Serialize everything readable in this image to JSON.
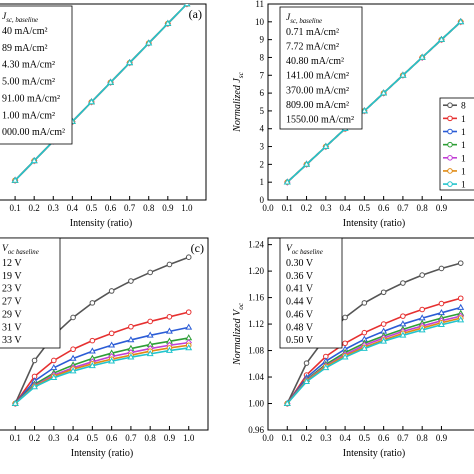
{
  "chart_data": [
    {
      "type": "line",
      "panel_label": "(a)",
      "xlabel": "Intensity (ratio)",
      "ylabel": "",
      "xlim": [
        0.0,
        1.1
      ],
      "ylim": [
        0,
        10
      ],
      "x_tick_labels": [
        "0.1",
        "0.2",
        "0.3",
        "0.4",
        "0.5",
        "0.6",
        "0.7",
        "0.8",
        "0.9",
        "1.0"
      ],
      "y_tick_labels": [],
      "legend_title": "J sc, baseline",
      "legend_title_main": "J",
      "legend_title_sub": "sc, baseline",
      "legend_labels": [
        "40 mA/cm²",
        "89 mA/cm²",
        "4.30 mA/cm²",
        "5.00 mA/cm²",
        "91.00 mA/cm²",
        "1.00 mA/cm²",
        "000.00 mA/cm²"
      ],
      "series": [
        {
          "color": "#e0e0e0",
          "values": [
            1,
            2,
            3,
            4,
            5,
            6,
            7,
            8,
            9,
            10
          ]
        },
        {
          "color": "#e63030",
          "values": [
            1,
            2,
            3,
            4,
            5,
            6,
            7,
            8,
            9,
            10
          ]
        },
        {
          "color": "#2b5cd6",
          "values": [
            1,
            2,
            3,
            4,
            5,
            6,
            7,
            8,
            9,
            10
          ]
        },
        {
          "color": "#2e9e36",
          "values": [
            1,
            2,
            3,
            4,
            5,
            6,
            7,
            8,
            9,
            10
          ]
        },
        {
          "color": "#c23fd6",
          "values": [
            1,
            2,
            3,
            4,
            5,
            6,
            7,
            8,
            9,
            10
          ]
        },
        {
          "color": "#e08a12",
          "values": [
            1,
            2,
            3,
            4,
            5,
            6,
            7,
            8,
            9,
            10
          ]
        },
        {
          "color": "#22c4cc",
          "values": [
            1,
            2,
            3,
            4,
            5,
            6,
            7,
            8,
            9,
            10
          ]
        }
      ],
      "x": [
        0.1,
        0.2,
        0.3,
        0.4,
        0.5,
        0.6,
        0.7,
        0.8,
        0.9,
        1.0
      ]
    },
    {
      "type": "line",
      "panel_label": "",
      "xlabel": "Intensity (ratio)",
      "ylabel": "Normalized J sc",
      "ylabel_main": "Normalized J",
      "ylabel_sub": "sc",
      "xlim": [
        0.0,
        1.1
      ],
      "ylim": [
        0,
        11
      ],
      "x_tick_labels": [
        "0.0",
        "0.1",
        "0.2",
        "0.3",
        "0.4",
        "0.5",
        "0.6",
        "0.7",
        "0.8",
        "0.9"
      ],
      "y_tick_labels": [
        "0",
        "1",
        "2",
        "3",
        "4",
        "5",
        "6",
        "7",
        "8",
        "9",
        "10",
        "11"
      ],
      "legend_title": "J sc, baseline",
      "legend_title_main": "J",
      "legend_title_sub": "sc, baseline",
      "legend_labels": [
        "0.71 mA/cm²",
        "7.72 mA/cm²",
        "40.80 mA/cm²",
        "141.00 mA/cm²",
        "370.00 mA/cm²",
        "809.00 mA/cm²",
        "1550.00 mA/cm²"
      ],
      "legend2_labels": [
        "8",
        "1",
        "1",
        "1",
        "1",
        "1",
        "1"
      ],
      "series": [
        {
          "color": "#e0e0e0",
          "values": [
            1,
            2,
            3,
            4,
            5,
            6,
            7,
            8,
            9,
            10
          ]
        },
        {
          "color": "#e63030",
          "values": [
            1,
            2,
            3,
            4,
            5,
            6,
            7,
            8,
            9,
            10
          ]
        },
        {
          "color": "#2b5cd6",
          "values": [
            1,
            2,
            3,
            4,
            5,
            6,
            7,
            8,
            9,
            10
          ]
        },
        {
          "color": "#2e9e36",
          "values": [
            1,
            2,
            3,
            4,
            5,
            6,
            7,
            8,
            9,
            10
          ]
        },
        {
          "color": "#c23fd6",
          "values": [
            1,
            2,
            3,
            4,
            5,
            6,
            7,
            8,
            9,
            10
          ]
        },
        {
          "color": "#e08a12",
          "values": [
            1,
            2,
            3,
            4,
            5,
            6,
            7,
            8,
            9,
            10
          ]
        },
        {
          "color": "#22c4cc",
          "values": [
            1,
            2,
            3,
            4,
            5,
            6,
            7,
            8,
            9,
            10
          ]
        }
      ],
      "legend2_colors": [
        "#555555",
        "#e63030",
        "#2b5cd6",
        "#2e9e36",
        "#c23fd6",
        "#e08a12",
        "#22c4cc"
      ],
      "x": [
        0.1,
        0.2,
        0.3,
        0.4,
        0.5,
        0.6,
        0.7,
        0.8,
        0.9,
        1.0
      ]
    },
    {
      "type": "line",
      "panel_label": "(c)",
      "xlabel": "Intensity (ratio)",
      "ylabel": "",
      "xlim": [
        0.0,
        1.1
      ],
      "ylim": [
        0.96,
        1.25
      ],
      "x_tick_labels": [
        "0.1",
        "0.2",
        "0.3",
        "0.4",
        "0.5",
        "0.6",
        "0.7",
        "0.8",
        "0.9",
        "1.0"
      ],
      "y_tick_labels": [],
      "legend_title": "V oc baseline",
      "legend_title_main": "V",
      "legend_title_sub": "oc baseline",
      "legend_labels": [
        "12 V",
        "19 V",
        "23 V",
        "27 V",
        "29 V",
        "31 V",
        "33 V"
      ],
      "series": [
        {
          "color": "#555555",
          "values": [
            1.0,
            1.065,
            1.103,
            1.13,
            1.152,
            1.17,
            1.185,
            1.198,
            1.21,
            1.221
          ]
        },
        {
          "color": "#e63030",
          "values": [
            1.0,
            1.041,
            1.065,
            1.082,
            1.095,
            1.106,
            1.116,
            1.124,
            1.131,
            1.138
          ]
        },
        {
          "color": "#2b5cd6",
          "values": [
            1.0,
            1.034,
            1.054,
            1.068,
            1.079,
            1.088,
            1.096,
            1.103,
            1.109,
            1.115
          ]
        },
        {
          "color": "#2e9e36",
          "values": [
            1.0,
            1.029,
            1.046,
            1.058,
            1.068,
            1.076,
            1.083,
            1.089,
            1.094,
            1.099
          ]
        },
        {
          "color": "#c23fd6",
          "values": [
            1.0,
            1.027,
            1.043,
            1.054,
            1.063,
            1.071,
            1.077,
            1.083,
            1.088,
            1.092
          ]
        },
        {
          "color": "#e08a12",
          "values": [
            1.0,
            1.026,
            1.041,
            1.052,
            1.06,
            1.067,
            1.073,
            1.079,
            1.084,
            1.088
          ]
        },
        {
          "color": "#22c4cc",
          "values": [
            1.0,
            1.025,
            1.039,
            1.049,
            1.057,
            1.064,
            1.07,
            1.075,
            1.08,
            1.084
          ]
        }
      ],
      "x": [
        0.1,
        0.2,
        0.3,
        0.4,
        0.5,
        0.6,
        0.7,
        0.8,
        0.9,
        1.0
      ]
    },
    {
      "type": "line",
      "panel_label": "",
      "xlabel": "Intensity (ratio)",
      "ylabel": "Normalized V oc",
      "ylabel_main": "Normalized V",
      "ylabel_sub": "oc",
      "xlim": [
        0.0,
        1.1
      ],
      "ylim": [
        0.96,
        1.25
      ],
      "x_tick_labels": [
        "0.0",
        "0.1",
        "0.2",
        "0.3",
        "0.4",
        "0.5",
        "0.6",
        "0.7",
        "0.8",
        "0.9"
      ],
      "y_tick_labels": [
        "0.96",
        "1.00",
        "1.04",
        "1.08",
        "1.12",
        "1.16",
        "1.20",
        "1.24"
      ],
      "legend_title": "V oc baseline",
      "legend_title_main": "V",
      "legend_title_sub": "oc baseline",
      "legend_labels": [
        "0.30 V",
        "0.36 V",
        "0.41 V",
        "0.44 V",
        "0.46 V",
        "0.48 V",
        "0.50 V"
      ],
      "series": [
        {
          "color": "#555555",
          "values": [
            1.0,
            1.061,
            1.1,
            1.13,
            1.152,
            1.168,
            1.182,
            1.194,
            1.204,
            1.212
          ]
        },
        {
          "color": "#e63030",
          "values": [
            1.0,
            1.043,
            1.071,
            1.091,
            1.107,
            1.12,
            1.132,
            1.142,
            1.151,
            1.159
          ]
        },
        {
          "color": "#2b5cd6",
          "values": [
            1.0,
            1.039,
            1.064,
            1.082,
            1.097,
            1.109,
            1.12,
            1.129,
            1.137,
            1.145
          ]
        },
        {
          "color": "#2e9e36",
          "values": [
            1.0,
            1.036,
            1.059,
            1.077,
            1.091,
            1.102,
            1.112,
            1.121,
            1.129,
            1.136
          ]
        },
        {
          "color": "#c23fd6",
          "values": [
            1.0,
            1.035,
            1.057,
            1.074,
            1.088,
            1.099,
            1.109,
            1.117,
            1.125,
            1.132
          ]
        },
        {
          "color": "#e08a12",
          "values": [
            1.0,
            1.034,
            1.056,
            1.072,
            1.085,
            1.096,
            1.106,
            1.114,
            1.122,
            1.129
          ]
        },
        {
          "color": "#22c4cc",
          "values": [
            1.0,
            1.033,
            1.054,
            1.07,
            1.083,
            1.094,
            1.103,
            1.111,
            1.119,
            1.126
          ]
        }
      ],
      "x": [
        0.1,
        0.2,
        0.3,
        0.4,
        0.5,
        0.6,
        0.7,
        0.8,
        0.9,
        1.0
      ]
    }
  ]
}
